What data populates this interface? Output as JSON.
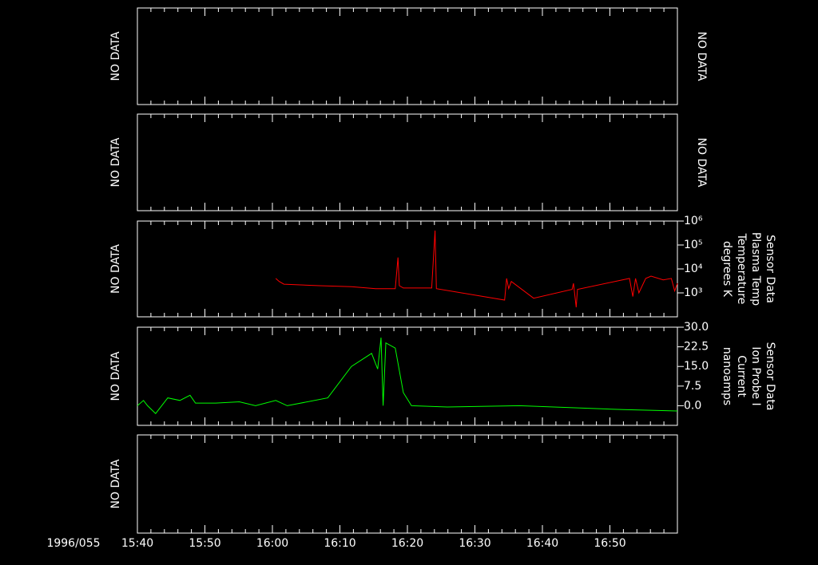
{
  "chart_data": [
    {
      "type": "empty",
      "left_label": "NO DATA",
      "right_label": "NO DATA"
    },
    {
      "type": "empty",
      "left_label": "NO DATA",
      "right_label": "NO DATA"
    },
    {
      "type": "line",
      "left_label": "NO DATA",
      "ylabel": [
        "Sensor Data",
        "Plasma Temp",
        "Temperature",
        "degrees K"
      ],
      "log_scale": true,
      "color": "#ff0000",
      "ylim": [
        100,
        1000000
      ],
      "yticks": [
        {
          "value": 1000,
          "label": "10³"
        },
        {
          "value": 10000,
          "label": "10⁴"
        },
        {
          "value": 100000,
          "label": "10⁵"
        },
        {
          "value": 1000000,
          "label": "10⁶"
        }
      ],
      "x": [
        960.5,
        961,
        961.7,
        967,
        971.7,
        975.3,
        978.2,
        978.6,
        978.8,
        979.4,
        983.6,
        984.1,
        984.3,
        994.4,
        994.7,
        995,
        995.4,
        998.7,
        1004.4,
        1004.6,
        1005,
        1005.2,
        1012.9,
        1013.4,
        1013.8,
        1014.3,
        1015.3,
        1016.1,
        1017.9,
        1019.1,
        1019.6,
        1020
      ],
      "values": [
        4000,
        3000,
        2300,
        2000,
        1800,
        1500,
        1500,
        30000,
        2000,
        1600,
        1600,
        400000,
        1500,
        500,
        4000,
        1500,
        3000,
        600,
        1400,
        2500,
        250,
        1400,
        4000,
        700,
        4000,
        1000,
        4000,
        5000,
        3500,
        4000,
        1200,
        2500
      ]
    },
    {
      "type": "line",
      "left_label": "NO DATA",
      "ylabel": [
        "Sensor Data",
        "Ion Probe I",
        "Current",
        "nanoamps"
      ],
      "color": "#00ff00",
      "ylim": [
        -7.5,
        30
      ],
      "yticks": [
        {
          "value": 0,
          "label": "0.0"
        },
        7.5,
        {
          "value": 15,
          "label": "15.0"
        },
        22.5,
        {
          "value": 30,
          "label": "30.0"
        }
      ],
      "x": [
        940,
        940.9,
        941.5,
        942.7,
        943.9,
        944.5,
        946.3,
        947.8,
        948.6,
        951.6,
        955.1,
        957.5,
        960.5,
        962.2,
        968.2,
        971.7,
        974.7,
        975.6,
        976.1,
        976.4,
        976.8,
        978.2,
        979.4,
        980.6,
        985.9,
        996.6,
        1012,
        1020
      ],
      "values": [
        0,
        2,
        0,
        -3,
        1,
        3,
        2,
        4,
        1,
        1,
        1.5,
        0,
        2,
        0,
        3,
        15,
        20,
        14,
        26,
        0,
        24,
        22,
        5,
        0,
        -0.5,
        0,
        -1.5,
        -2
      ]
    },
    {
      "type": "empty",
      "left_label": "NO DATA",
      "date_label": "1996/055",
      "xlim": [
        940,
        1020
      ],
      "xticks": [
        {
          "value": 940,
          "label": "15:40"
        },
        {
          "value": 950,
          "label": "15:50"
        },
        {
          "value": 960,
          "label": "16:00"
        },
        {
          "value": 970,
          "label": "16:10"
        },
        {
          "value": 980,
          "label": "16:20"
        },
        {
          "value": 990,
          "label": "16:30"
        },
        {
          "value": 1000,
          "label": "16:40"
        },
        {
          "value": 1010,
          "label": "16:50"
        }
      ],
      "xminor": [
        942,
        944,
        946,
        948,
        952,
        954,
        956,
        958,
        962,
        964,
        966,
        968,
        972,
        974,
        976,
        978,
        982,
        984,
        986,
        988,
        992,
        994,
        996,
        998,
        1002,
        1004,
        1006,
        1008,
        1012,
        1014,
        1016,
        1018
      ]
    }
  ]
}
